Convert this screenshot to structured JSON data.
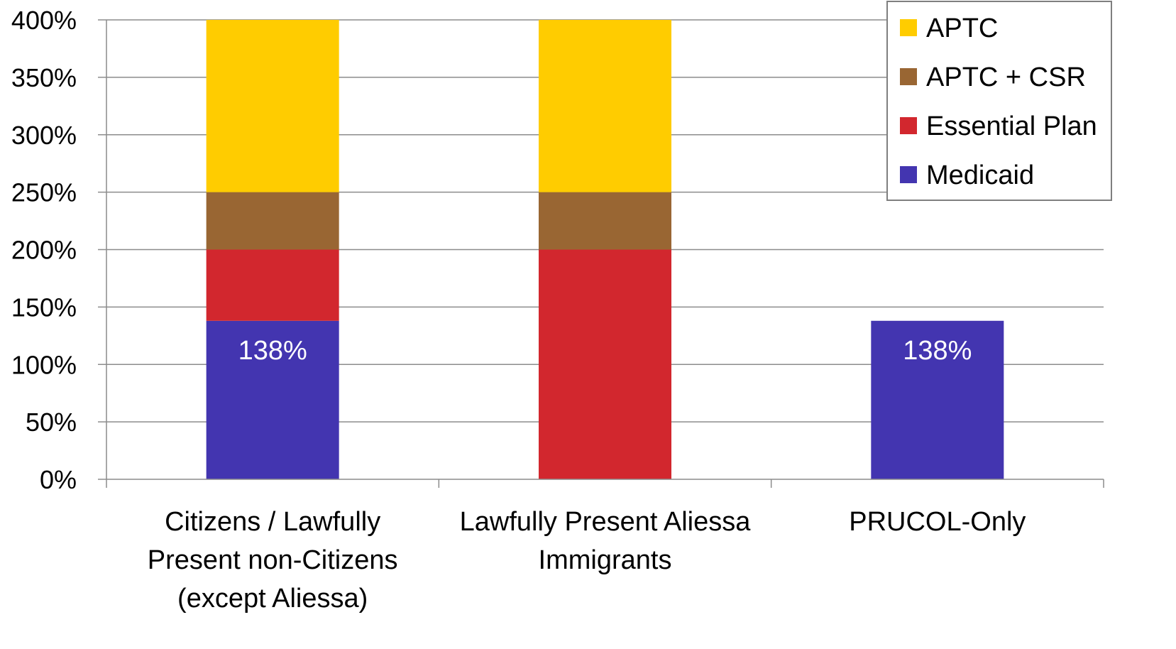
{
  "chart_data": {
    "type": "bar",
    "stacked": true,
    "categories": [
      [
        "Citizens / Lawfully",
        "Present non-Citizens",
        "(except Aliessa)"
      ],
      [
        "Lawfully Present Aliessa",
        "Immigrants"
      ],
      [
        "PRUCOL-Only"
      ]
    ],
    "series": [
      {
        "name": "Medicaid",
        "color": "#4335B0",
        "values": [
          138,
          0,
          138
        ]
      },
      {
        "name": "Essential Plan",
        "color": "#D2272E",
        "values": [
          62,
          200,
          0
        ]
      },
      {
        "name": "APTC + CSR",
        "color": "#996633",
        "values": [
          50,
          50,
          0
        ]
      },
      {
        "name": "APTC",
        "color": "#FFCC00",
        "values": [
          150,
          150,
          0
        ]
      }
    ],
    "legend_order": [
      "APTC",
      "APTC + CSR",
      "Essential Plan",
      "Medicaid"
    ],
    "data_labels": [
      {
        "category_index": 0,
        "series": "Medicaid",
        "text": "138%"
      },
      {
        "category_index": 2,
        "series": "Medicaid",
        "text": "138%"
      }
    ],
    "y_ticks": [
      "0%",
      "50%",
      "100%",
      "150%",
      "200%",
      "250%",
      "300%",
      "350%",
      "400%"
    ],
    "ylim": [
      0,
      400
    ],
    "grid": true,
    "legend_position": "top-right"
  }
}
